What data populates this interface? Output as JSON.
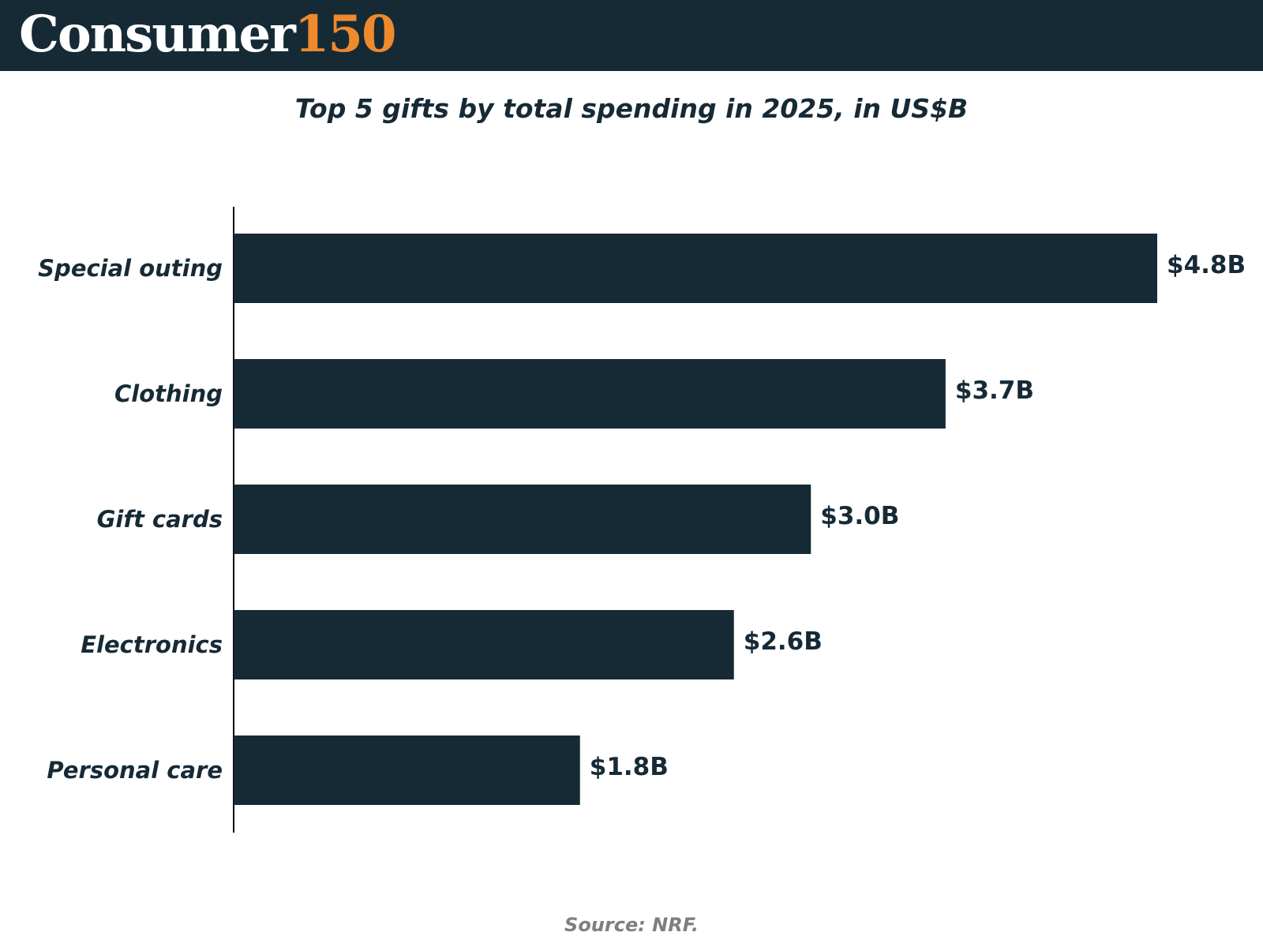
{
  "header": {
    "logo_word": "Consumer",
    "logo_number": "150",
    "background_color": "#162a36",
    "accent_color": "#ee8a2c"
  },
  "source": "Source: NRF.",
  "chart_data": {
    "type": "bar",
    "orientation": "horizontal",
    "title": "Top 5 gifts by total spending in 2025, in US$B",
    "xlabel": "",
    "ylabel": "",
    "categories": [
      "Special outing",
      "Clothing",
      "Gift cards",
      "Electronics",
      "Personal care"
    ],
    "values": [
      4.8,
      3.7,
      3.0,
      2.6,
      1.8
    ],
    "data_labels": [
      "$4.8B",
      "$3.7B",
      "$3.0B",
      "$2.6B",
      "$1.8B"
    ],
    "xlim": [
      0,
      4.8
    ],
    "grid": false,
    "legend": "none",
    "bar_color": "#162a36"
  }
}
